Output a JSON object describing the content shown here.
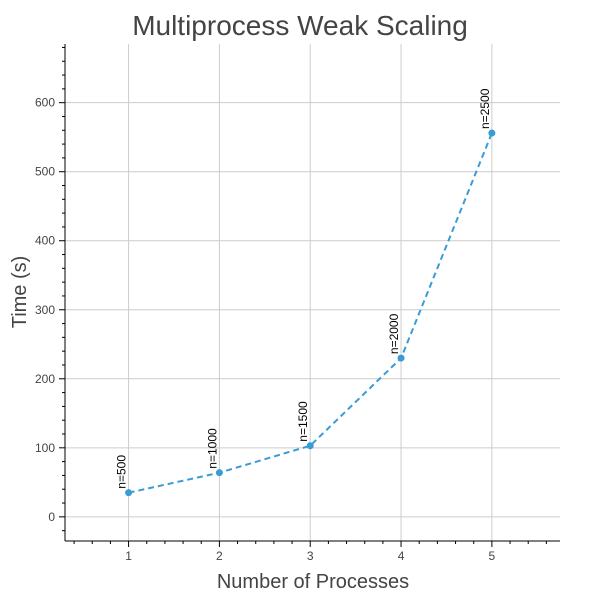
{
  "chart_data": {
    "type": "line",
    "title": "Multiprocess Weak Scaling",
    "xlabel": "Number of Processes",
    "ylabel": "Time (s)",
    "x": [
      1,
      2,
      3,
      4,
      5
    ],
    "series": [
      {
        "values": [
          35,
          64,
          103,
          230,
          556
        ],
        "line_style": "dashed",
        "markers": true
      }
    ],
    "point_labels": [
      "n=500",
      "n=1000",
      "n=1500",
      "n=2000",
      "n=2500"
    ],
    "xticks": [
      "1",
      "2",
      "3",
      "4",
      "5"
    ],
    "yticks": [
      "0",
      "100",
      "200",
      "300",
      "400",
      "500",
      "600"
    ],
    "xlim": [
      0.3,
      5.75
    ],
    "ylim": [
      -35,
      685
    ],
    "grid": true,
    "color": "#3a9bd6"
  }
}
